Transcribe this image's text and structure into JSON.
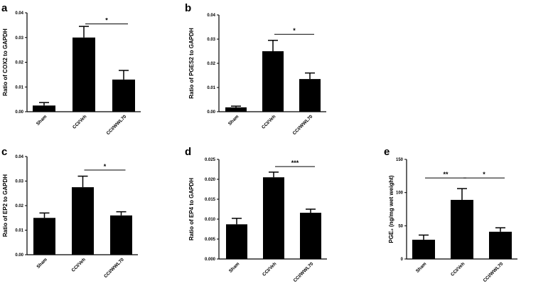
{
  "chart_data": [
    {
      "type": "bar",
      "panel": "a",
      "ylabel": "Ratio of COX2 to GAPDH",
      "categories": [
        "Sham",
        "CCI/Veh",
        "CCI/WWL70"
      ],
      "values": [
        0.0025,
        0.03,
        0.013
      ],
      "errors": [
        0.0012,
        0.0045,
        0.0037
      ],
      "ylim": [
        0,
        0.04
      ],
      "yticks": [
        0.0,
        0.01,
        0.02,
        0.03,
        0.04
      ],
      "ytick_labels": [
        "0.00",
        "0.01",
        "0.02",
        "0.03",
        "0.04"
      ],
      "significance": [
        {
          "from": 1,
          "to": 2,
          "label": "*",
          "y": 0.0355
        }
      ]
    },
    {
      "type": "bar",
      "panel": "b",
      "ylabel": "Ratio of PGES2 to GAPDH",
      "categories": [
        "Sham",
        "CCI/Veh",
        "CCI/WWL70"
      ],
      "values": [
        0.0018,
        0.025,
        0.0135
      ],
      "errors": [
        0.0005,
        0.0045,
        0.0025
      ],
      "ylim": [
        0,
        0.04
      ],
      "yticks": [
        0.0,
        0.01,
        0.02,
        0.03,
        0.04
      ],
      "ytick_labels": [
        "0.00",
        "0.01",
        "0.02",
        "0.03",
        "0.04"
      ],
      "significance": [
        {
          "from": 1,
          "to": 2,
          "label": "*",
          "y": 0.032
        }
      ]
    },
    {
      "type": "bar",
      "panel": "c",
      "ylabel": "Ratio of EP2 to GAPDH",
      "categories": [
        "Sham",
        "CCI/Veh",
        "CCI/WWL70"
      ],
      "values": [
        0.015,
        0.0275,
        0.016
      ],
      "errors": [
        0.002,
        0.0045,
        0.0015
      ],
      "ylim": [
        0,
        0.04
      ],
      "yticks": [
        0.0,
        0.01,
        0.02,
        0.03,
        0.04
      ],
      "ytick_labels": [
        "0.00",
        "0.01",
        "0.02",
        "0.03",
        "0.04"
      ],
      "significance": [
        {
          "from": 1,
          "to": 2,
          "label": "*",
          "y": 0.0345
        }
      ]
    },
    {
      "type": "bar",
      "panel": "d",
      "ylabel": "Ratio of EP4 to GAPDH",
      "categories": [
        "Sham",
        "CCI/Veh",
        "CCI/WWL70"
      ],
      "values": [
        0.0087,
        0.0205,
        0.0116
      ],
      "errors": [
        0.0015,
        0.0013,
        0.0009
      ],
      "ylim": [
        0,
        0.025
      ],
      "yticks": [
        0.0,
        0.005,
        0.01,
        0.015,
        0.02,
        0.025
      ],
      "ytick_labels": [
        "0.000",
        "0.005",
        "0.010",
        "0.015",
        "0.020",
        "0.025"
      ],
      "significance": [
        {
          "from": 1,
          "to": 2,
          "label": "***",
          "y": 0.0232
        }
      ]
    },
    {
      "type": "bar",
      "panel": "e",
      "ylabel": "PGE₂ (ng/mg wet weight)",
      "categories": [
        "Sham",
        "CCI/Veh",
        "CCI/WWL70"
      ],
      "values": [
        29,
        89,
        41
      ],
      "errors": [
        7,
        17,
        6
      ],
      "ylim": [
        0,
        150
      ],
      "yticks": [
        0,
        50,
        100,
        150
      ],
      "ytick_labels": [
        "0",
        "50",
        "100",
        "150"
      ],
      "significance": [
        {
          "from": 0,
          "to": 1,
          "label": "**",
          "y": 122
        },
        {
          "from": 1,
          "to": 2,
          "label": "*",
          "y": 122
        }
      ]
    }
  ]
}
